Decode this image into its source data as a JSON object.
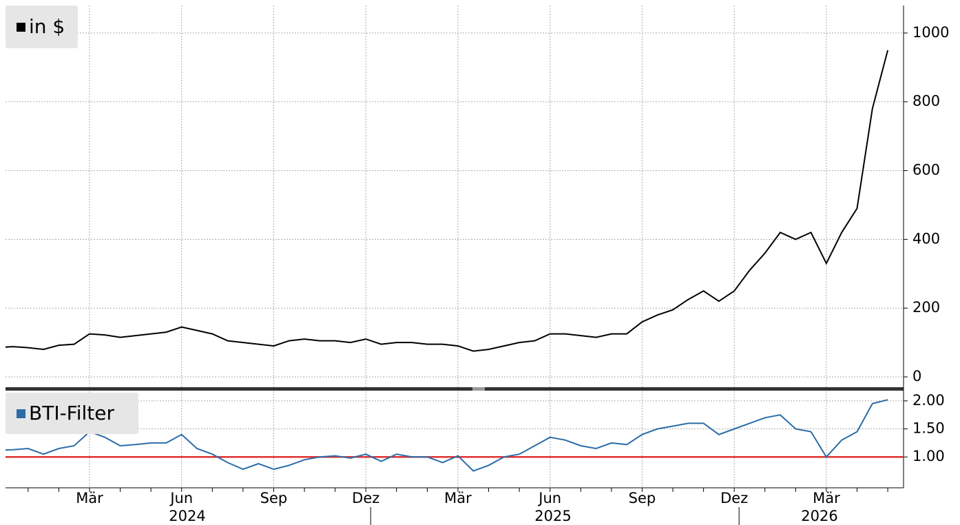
{
  "chart_data": [
    {
      "type": "line",
      "legend": "in $",
      "categories": [
        null,
        null,
        null,
        null,
        null,
        null,
        "Mär",
        null,
        null,
        null,
        null,
        null,
        "Jun",
        null,
        null,
        null,
        null,
        null,
        "Sep",
        null,
        null,
        null,
        null,
        null,
        "Dez",
        null,
        null,
        null,
        null,
        null,
        "Mär",
        null,
        null,
        null,
        null,
        null,
        "Jun",
        null,
        null,
        null,
        null,
        null,
        "Sep",
        null,
        null,
        null,
        null,
        null,
        "Dez",
        null,
        null,
        null,
        null,
        null,
        "Mär",
        null,
        null,
        null,
        null
      ],
      "years": [
        "2024",
        "2025",
        "2026"
      ],
      "series": [
        {
          "name": "in $",
          "color": "#000000",
          "values": [
            85,
            88,
            85,
            80,
            92,
            95,
            125,
            122,
            115,
            120,
            125,
            130,
            145,
            135,
            125,
            105,
            100,
            95,
            90,
            105,
            110,
            105,
            105,
            100,
            110,
            95,
            100,
            100,
            95,
            95,
            90,
            75,
            80,
            90,
            100,
            105,
            125,
            125,
            120,
            115,
            125,
            125,
            160,
            180,
            195,
            225,
            250,
            220,
            250,
            310,
            360,
            420,
            400,
            420,
            330,
            420,
            490,
            780,
            950
          ]
        }
      ],
      "ylim": [
        -30,
        1080
      ],
      "yticks": [
        0,
        200,
        400,
        600,
        800,
        1000
      ],
      "grid": true
    },
    {
      "type": "line",
      "legend": "BTI-Filter",
      "series": [
        {
          "name": "BTI-Filter",
          "color": "#2b6ca8",
          "values": [
            1.12,
            1.13,
            1.15,
            1.05,
            1.15,
            1.2,
            1.45,
            1.35,
            1.2,
            1.22,
            1.25,
            1.25,
            1.4,
            1.15,
            1.05,
            0.9,
            0.78,
            0.88,
            0.78,
            0.85,
            0.95,
            1.0,
            1.02,
            0.98,
            1.05,
            0.92,
            1.05,
            1.0,
            1.0,
            0.9,
            1.02,
            0.75,
            0.85,
            1.0,
            1.05,
            1.2,
            1.35,
            1.3,
            1.2,
            1.15,
            1.25,
            1.22,
            1.4,
            1.5,
            1.55,
            1.6,
            1.6,
            1.4,
            1.5,
            1.6,
            1.7,
            1.75,
            1.5,
            1.45,
            1.0,
            1.3,
            1.45,
            1.95,
            2.02
          ]
        }
      ],
      "reference": {
        "value": 1,
        "color": "#e03030"
      },
      "ylim": [
        0.45,
        2.17
      ],
      "yticks": [
        {
          "value": 1,
          "label": "1.00"
        },
        {
          "value": 1.5,
          "label": "1.50"
        },
        {
          "value": 2,
          "label": "2.00"
        }
      ],
      "grid": true
    }
  ]
}
